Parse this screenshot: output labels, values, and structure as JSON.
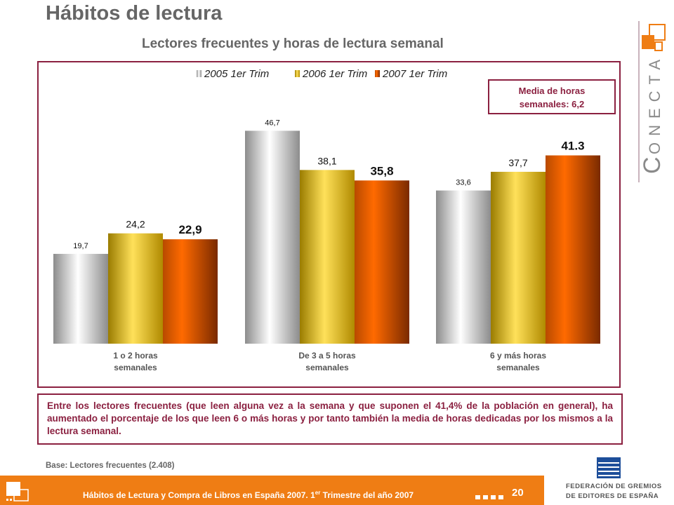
{
  "page_title": "Hábitos de lectura",
  "subtitle": "Lectores frecuentes y horas de lectura semanal",
  "media_box": {
    "line1": "Media de horas",
    "line2": "semanales: 6,2"
  },
  "note": "Entre los lectores frecuentes (que leen alguna vez a la semana y que  suponen el 41,4% de la población en general), ha aumentado el porcentaje de los que leen 6 o más horas y por tanto también la media de horas dedicadas por los mismos a la lectura semanal.",
  "base_note": "Base: Lectores frecuentes (2.408)",
  "footer": {
    "text_pre": "Hábitos de Lectura y Compra de Libros en España 2007. 1",
    "text_sup": "er",
    "text_post": " Trimestre del año 2007",
    "page_number": "20"
  },
  "logos": {
    "conecta": "CONECTA",
    "federacion_line1": "FEDERACIÓN DE GREMIOS",
    "federacion_line2": "DE EDITORES DE ESPAÑA"
  },
  "colors": {
    "brand_maroon": "#8b2040",
    "footer_orange": "#ef7d14",
    "series_2005": "#d9d9d9",
    "series_2006": "#f4c400",
    "series_2007": "#f06a00"
  },
  "chart_data": {
    "type": "bar",
    "title": "Lectores frecuentes y horas de lectura semanal",
    "categories": [
      [
        "1 o 2 horas",
        "semanales"
      ],
      [
        "De 3 a 5 horas",
        "semanales"
      ],
      [
        "6 y más horas",
        "semanales"
      ]
    ],
    "series": [
      {
        "name": "2005 1er Trim",
        "values": [
          19.7,
          46.7,
          33.6
        ],
        "labels": [
          "19,7",
          "46,7",
          "33,6"
        ]
      },
      {
        "name": "2006 1er Trim",
        "values": [
          24.2,
          38.1,
          37.7
        ],
        "labels": [
          "24,2",
          "38,1",
          "37,7"
        ]
      },
      {
        "name": "2007 1er Trim",
        "values": [
          22.9,
          35.8,
          41.3
        ],
        "labels": [
          "22,9",
          "35,8",
          "41.3"
        ]
      }
    ],
    "ylim": [
      0,
      56
    ],
    "grid": false,
    "legend": "top"
  }
}
